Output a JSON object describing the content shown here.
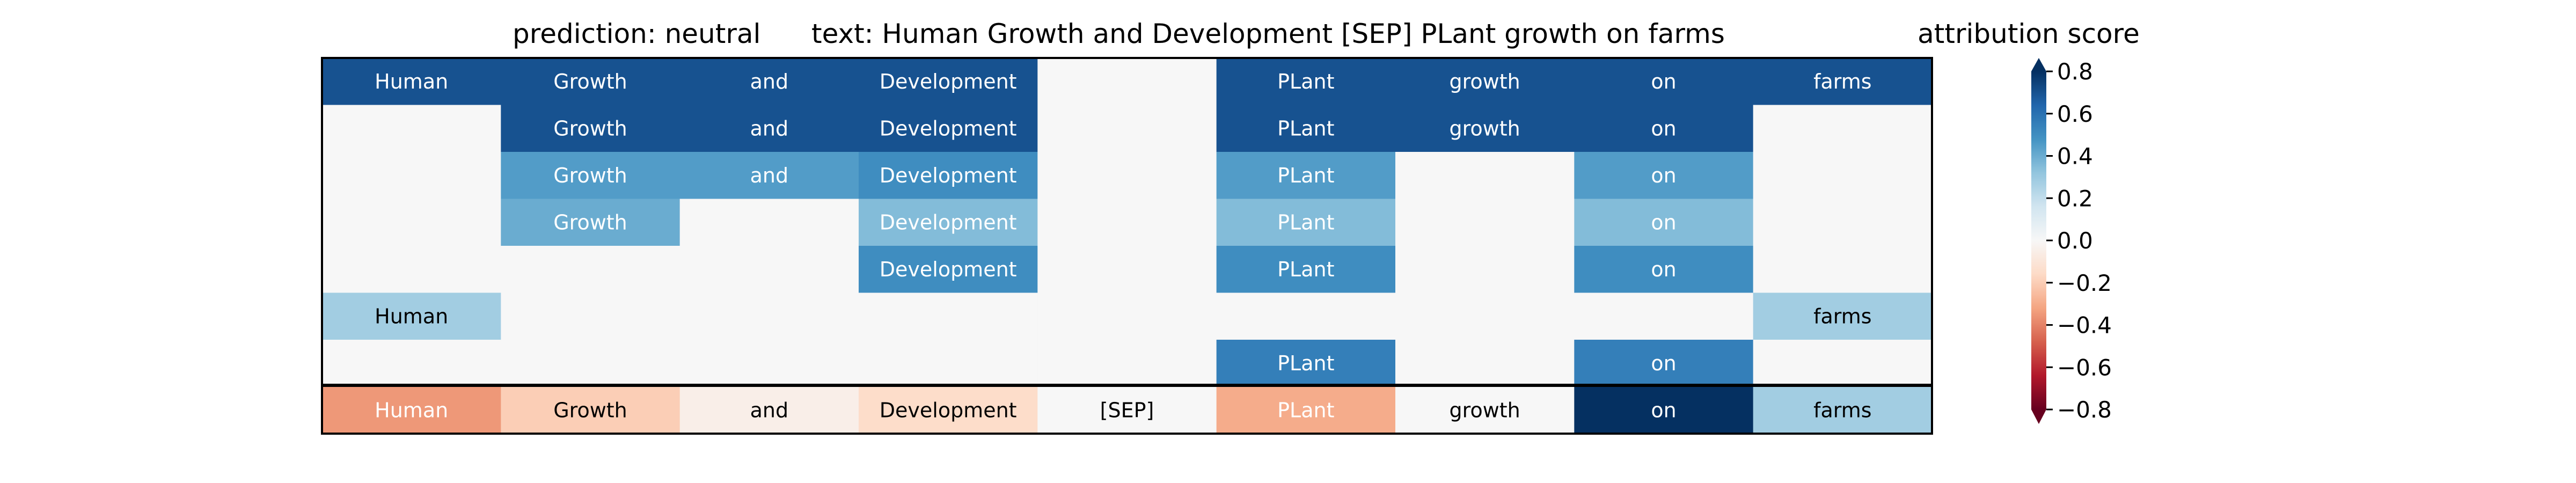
{
  "chart_data": [
    {
      "type": "heatmap",
      "prediction_label": "prediction:  neutral",
      "text_label": "text:  Human Growth and Development [SEP] PLant growth on farms",
      "tokens": [
        "Human",
        "Growth",
        "and",
        "Development",
        "[SEP]",
        "PLant",
        "growth",
        "on",
        "farms"
      ],
      "rows": [
        {
          "values": [
            0.7,
            0.7,
            0.7,
            0.7,
            0.0,
            0.7,
            0.7,
            0.7,
            0.7
          ],
          "labels": [
            true,
            true,
            true,
            true,
            false,
            true,
            true,
            true,
            true
          ]
        },
        {
          "values": [
            0.0,
            0.7,
            0.7,
            0.7,
            0.0,
            0.7,
            0.7,
            0.7,
            0.0
          ],
          "labels": [
            false,
            true,
            true,
            true,
            false,
            true,
            true,
            true,
            false
          ]
        },
        {
          "values": [
            0.0,
            0.45,
            0.45,
            0.5,
            0.0,
            0.45,
            0.0,
            0.45,
            0.0
          ],
          "labels": [
            false,
            true,
            true,
            true,
            false,
            true,
            false,
            true,
            false
          ]
        },
        {
          "values": [
            0.0,
            0.4,
            0.0,
            0.35,
            0.0,
            0.35,
            0.0,
            0.35,
            0.0
          ],
          "labels": [
            false,
            true,
            false,
            true,
            false,
            true,
            false,
            true,
            false
          ]
        },
        {
          "values": [
            0.0,
            0.0,
            0.0,
            0.5,
            0.0,
            0.5,
            0.0,
            0.5,
            0.0
          ],
          "labels": [
            false,
            false,
            false,
            true,
            false,
            true,
            false,
            true,
            false
          ]
        },
        {
          "values": [
            0.28,
            0.0,
            0.0,
            0.0,
            0.0,
            0.0,
            0.0,
            0.0,
            0.28
          ],
          "labels": [
            true,
            false,
            false,
            false,
            false,
            false,
            false,
            false,
            true
          ]
        },
        {
          "values": [
            0.0,
            0.0,
            0.0,
            0.0,
            0.0,
            0.55,
            0.0,
            0.55,
            0.0
          ],
          "labels": [
            false,
            false,
            false,
            false,
            false,
            true,
            false,
            true,
            false
          ]
        }
      ],
      "summary_row": {
        "values": [
          -0.35,
          -0.2,
          -0.05,
          -0.15,
          0.0,
          -0.3,
          0.0,
          0.8,
          0.28
        ],
        "labels": [
          true,
          true,
          true,
          true,
          true,
          true,
          true,
          true,
          true
        ]
      }
    },
    {
      "type": "colorbar",
      "title": "attribution score",
      "range": [
        -0.8,
        0.8
      ],
      "ticks": [
        {
          "value": 0.8,
          "label": "0.8"
        },
        {
          "value": 0.6,
          "label": "0.6"
        },
        {
          "value": 0.4,
          "label": "0.4"
        },
        {
          "value": 0.2,
          "label": "0.2"
        },
        {
          "value": 0.0,
          "label": "0.0"
        },
        {
          "value": -0.2,
          "label": "−0.2"
        },
        {
          "value": -0.4,
          "label": "−0.4"
        },
        {
          "value": -0.6,
          "label": "−0.6"
        },
        {
          "value": -0.8,
          "label": "−0.8"
        }
      ],
      "extend": "both",
      "colormap": "RdBu"
    }
  ]
}
